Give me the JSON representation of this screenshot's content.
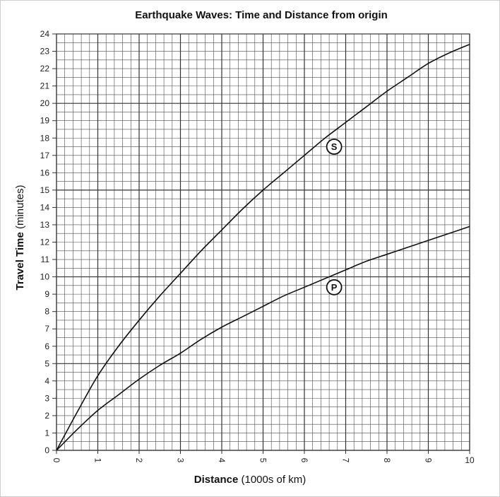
{
  "chart_data": {
    "type": "line",
    "title": "Earthquake Waves: Time and Distance from origin",
    "xlabel_bold": "Distance",
    "xlabel_unit": "(1000s of km)",
    "ylabel_bold": "Travel Time",
    "ylabel_unit": "(minutes)",
    "xlim": [
      0,
      10
    ],
    "ylim": [
      0,
      24
    ],
    "xticks": [
      "0",
      "1",
      "2",
      "3",
      "4",
      "5",
      "6",
      "7",
      "8",
      "9",
      "10"
    ],
    "yticks": [
      "0",
      "1",
      "2",
      "3",
      "4",
      "5",
      "6",
      "7",
      "8",
      "9",
      "10",
      "11",
      "12",
      "13",
      "14",
      "15",
      "16",
      "17",
      "18",
      "19",
      "20",
      "21",
      "22",
      "23",
      "24"
    ],
    "grid": true,
    "series": [
      {
        "name": "S",
        "x": [
          0,
          0.5,
          1,
          1.5,
          2,
          2.5,
          3,
          3.5,
          4,
          4.5,
          5,
          5.5,
          6,
          6.5,
          7,
          7.5,
          8,
          8.5,
          9,
          9.5,
          10
        ],
        "y": [
          0,
          2.2,
          4.3,
          6.0,
          7.5,
          8.9,
          10.2,
          11.5,
          12.7,
          13.9,
          15.0,
          16.0,
          17.0,
          18.0,
          18.9,
          19.8,
          20.7,
          21.5,
          22.3,
          22.9,
          23.4
        ]
      },
      {
        "name": "P",
        "x": [
          0,
          0.5,
          1,
          1.5,
          2,
          2.5,
          3,
          3.5,
          4,
          4.5,
          5,
          5.5,
          6,
          6.5,
          7,
          7.5,
          8,
          8.5,
          9,
          9.5,
          10
        ],
        "y": [
          0,
          1.2,
          2.3,
          3.2,
          4.1,
          4.9,
          5.6,
          6.4,
          7.1,
          7.7,
          8.3,
          8.9,
          9.4,
          9.9,
          10.4,
          10.9,
          11.3,
          11.7,
          12.1,
          12.5,
          12.9
        ]
      }
    ],
    "curve_labels": [
      {
        "text": "S",
        "x": 6.72,
        "y": 17.5
      },
      {
        "text": "P",
        "x": 6.72,
        "y": 9.4
      }
    ],
    "colors": {
      "curve": "#111111",
      "grid_major": "#333333",
      "grid_minor": "#4a4a4a",
      "frame": "#cfcfcf"
    }
  }
}
